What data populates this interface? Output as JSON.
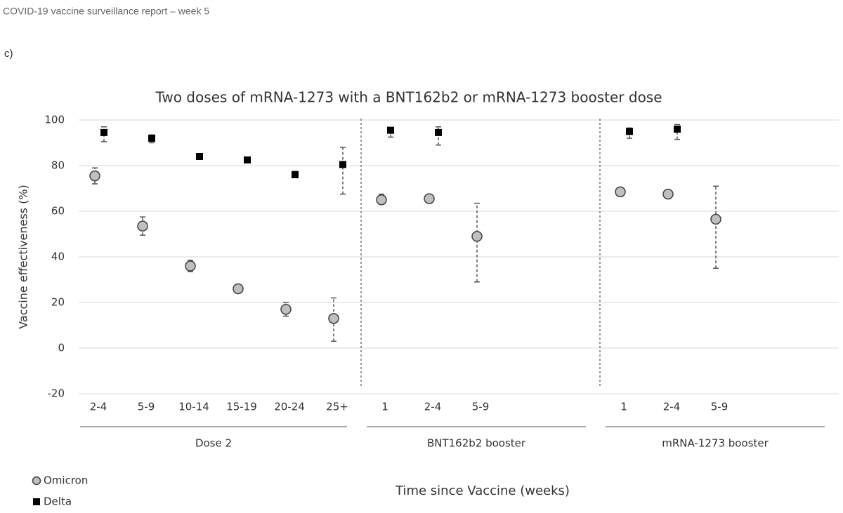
{
  "header": {
    "title": "COVID-19 vaccine surveillance report – week 5",
    "panel": "c)"
  },
  "chart_data": {
    "type": "scatter",
    "title": "Two doses of mRNA-1273 with a BNT162b2 or mRNA-1273 booster dose",
    "y_label": "Vaccine effectiveness (%)",
    "x_label": "Time since Vaccine (weeks)",
    "categories": [
      "2-4",
      "5-9",
      "10-14",
      "15-19",
      "20-24",
      "25+",
      "1",
      "2-4",
      "5-9",
      null,
      null,
      "1",
      "2-4",
      "5-9",
      null,
      null
    ],
    "groups": [
      {
        "name": "Dose 2",
        "start": 0,
        "end": 5
      },
      {
        "name": "BNT162b2 booster",
        "start": 6,
        "end": 10
      },
      {
        "name": "mRNA-1273 booster",
        "start": 11,
        "end": 15
      }
    ],
    "series": [
      {
        "name": "Omicron",
        "color": "#bfbfbf",
        "marker": "circle",
        "values": [
          75.5,
          53.5,
          36,
          26,
          17,
          13,
          65,
          65.5,
          49,
          null,
          null,
          68.5,
          67.5,
          56.5,
          null,
          null
        ],
        "lower": [
          72,
          49.5,
          33.5,
          24.5,
          14,
          3,
          63,
          64,
          29,
          null,
          null,
          66.5,
          66,
          35,
          null,
          null
        ],
        "upper": [
          79,
          57.5,
          38.5,
          27.5,
          20,
          22,
          67.5,
          67,
          63.5,
          null,
          null,
          70,
          69,
          71,
          null,
          null
        ]
      },
      {
        "name": "Delta",
        "color": "#000000",
        "marker": "square",
        "values": [
          94.5,
          92,
          84,
          82.5,
          76,
          80.5,
          95.5,
          94.5,
          null,
          null,
          null,
          95,
          96,
          null,
          null,
          null
        ],
        "lower": [
          90.5,
          90,
          83,
          81.5,
          75,
          67.5,
          92.5,
          89,
          null,
          null,
          null,
          92,
          91.5,
          null,
          null,
          null
        ],
        "upper": [
          97,
          93.5,
          85,
          83.5,
          77.5,
          88,
          96.5,
          97,
          null,
          null,
          null,
          96.5,
          98,
          null,
          null,
          null
        ]
      }
    ],
    "ylim": [
      -20,
      100
    ],
    "yticks": [
      -20,
      0,
      20,
      40,
      60,
      80,
      100
    ],
    "grid": true
  }
}
